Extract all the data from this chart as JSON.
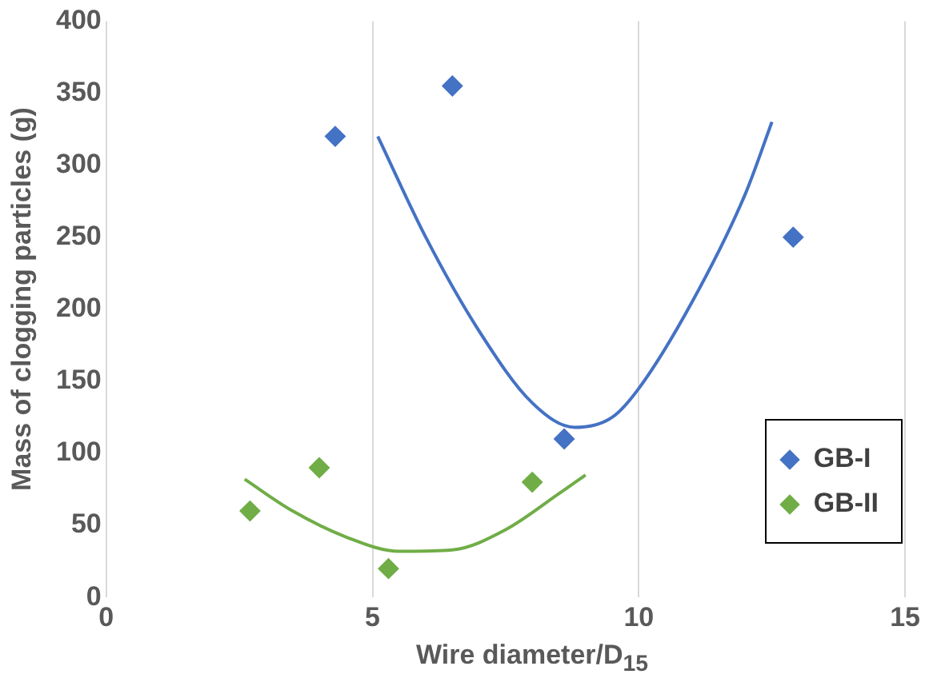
{
  "chart_data": {
    "type": "scatter",
    "xlabel": "Wire diameter/D$_{15}$",
    "ylabel": "Mass of clogging particles (g)",
    "xlim": [
      0,
      15
    ],
    "xticks": [
      0,
      5,
      10,
      15
    ],
    "ylim": [
      0,
      400
    ],
    "yticks": [
      0,
      50,
      100,
      150,
      200,
      250,
      300,
      350,
      400
    ],
    "grid": "x",
    "legend": "bottom right",
    "marker": "diamond",
    "series": [
      {
        "name": "GB-I",
        "color": "#4472c4",
        "x": [
          4.3,
          6.5,
          8.6,
          12.9
        ],
        "values": [
          320,
          355,
          110,
          250
        ]
      },
      {
        "name": "GB-II",
        "color": "#70ad47",
        "x": [
          2.7,
          4.0,
          5.3,
          8.0
        ],
        "values": [
          60,
          90,
          20,
          80
        ]
      },
      {
        "type": "line",
        "color": "#4472c4",
        "marker": "none",
        "x": [
          5.1,
          6,
          7,
          8,
          8.8,
          9.5,
          10,
          11,
          12,
          12.5
        ],
        "values": [
          320,
          250,
          185,
          135,
          118,
          125,
          145,
          205,
          280,
          330
        ]
      },
      {
        "type": "line",
        "color": "#70ad47",
        "marker": "none",
        "x": [
          2.6,
          3.5,
          4.5,
          5.5,
          6.5,
          7.5,
          8.5,
          9
        ],
        "values": [
          82,
          60,
          42,
          32,
          33,
          47,
          72,
          85
        ]
      }
    ]
  }
}
